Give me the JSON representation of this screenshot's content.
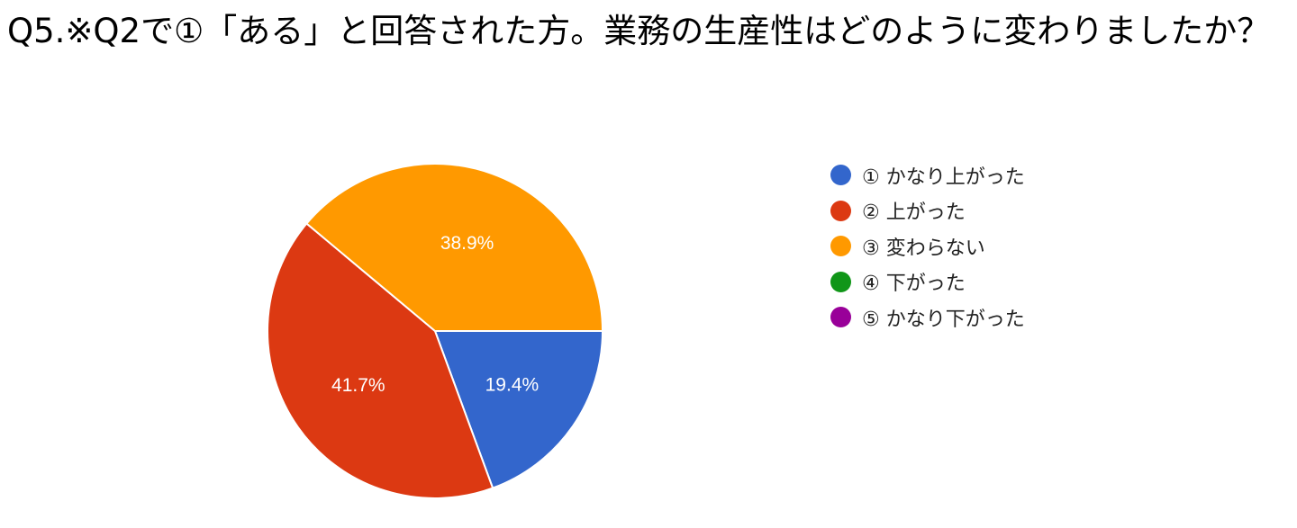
{
  "title": "Q5.※Q2で①「ある」と回答された方。業務の生産性はどのように変わりましたか？",
  "chart_data": {
    "type": "pie",
    "title": "Q5.※Q2で①「ある」と回答された方。業務の生産性はどのように変わりましたか？",
    "legend_position": "right",
    "slices": [
      {
        "label": "① かなり上がった",
        "value": 19.4,
        "color": "#3366cc",
        "data_label": "19.4%"
      },
      {
        "label": "② 上がった",
        "value": 41.7,
        "color": "#dc3912",
        "data_label": "41.7%"
      },
      {
        "label": "③ 変わらない",
        "value": 38.9,
        "color": "#ff9900",
        "data_label": "38.9%"
      },
      {
        "label": "④ 下がった",
        "value": 0,
        "color": "#109618",
        "data_label": ""
      },
      {
        "label": "⑤ かなり下がった",
        "value": 0,
        "color": "#990099",
        "data_label": ""
      }
    ]
  }
}
